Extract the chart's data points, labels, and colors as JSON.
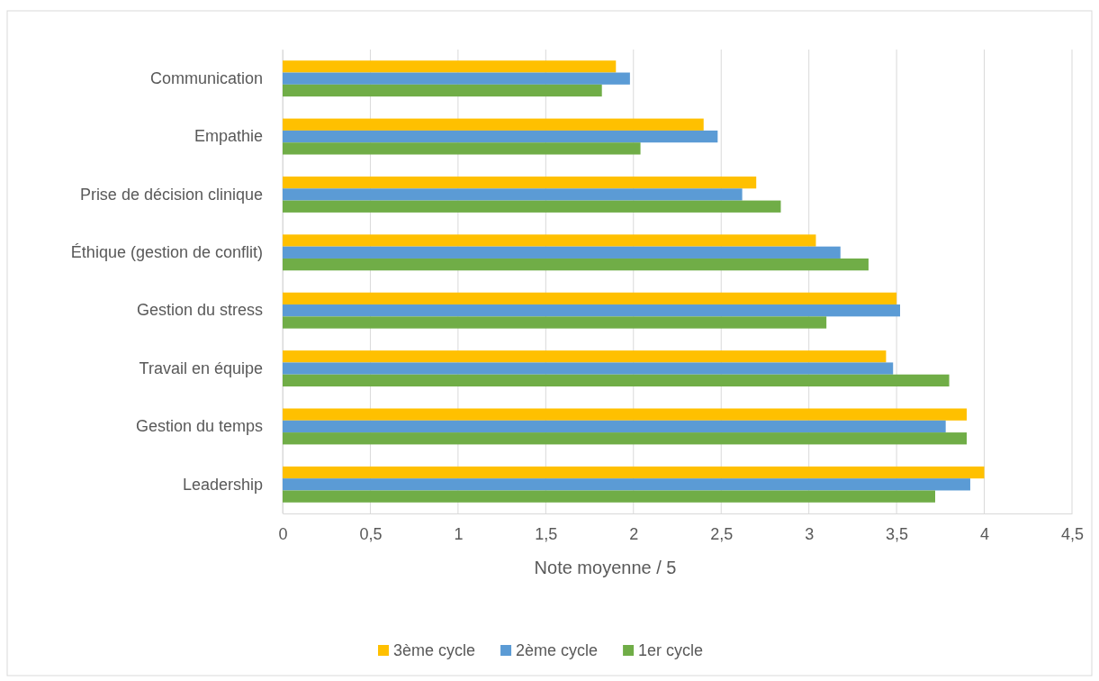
{
  "chart_data": {
    "type": "bar",
    "orientation": "horizontal",
    "xlabel": "Note moyenne / 5",
    "categories": [
      "Communication",
      "Empathie",
      "Prise de décision clinique",
      "Éthique (gestion de conflit)",
      "Gestion du stress",
      "Travail en équipe",
      "Gestion du temps",
      "Leadership"
    ],
    "series": [
      {
        "name": "3ème cycle",
        "color": "#ffc000",
        "values": [
          1.9,
          2.4,
          2.7,
          3.04,
          3.5,
          3.44,
          3.9,
          4.0
        ]
      },
      {
        "name": "2ème cycle",
        "color": "#5b9bd5",
        "values": [
          1.98,
          2.48,
          2.62,
          3.18,
          3.52,
          3.48,
          3.78,
          3.92
        ]
      },
      {
        "name": "1er cycle",
        "color": "#70ad47",
        "values": [
          1.82,
          2.04,
          2.84,
          3.34,
          3.1,
          3.8,
          3.9,
          3.72
        ]
      }
    ],
    "xlim": [
      0,
      4.5
    ],
    "xticks": [
      {
        "value": 0,
        "label": "0"
      },
      {
        "value": 0.5,
        "label": "0,5"
      },
      {
        "value": 1,
        "label": "1"
      },
      {
        "value": 1.5,
        "label": "1,5"
      },
      {
        "value": 2,
        "label": "2"
      },
      {
        "value": 2.5,
        "label": "2,5"
      },
      {
        "value": 3,
        "label": "3"
      },
      {
        "value": 3.5,
        "label": "3,5"
      },
      {
        "value": 4,
        "label": "4"
      },
      {
        "value": 4.5,
        "label": "4,5"
      }
    ],
    "grid": "x",
    "legend": "bottom"
  }
}
